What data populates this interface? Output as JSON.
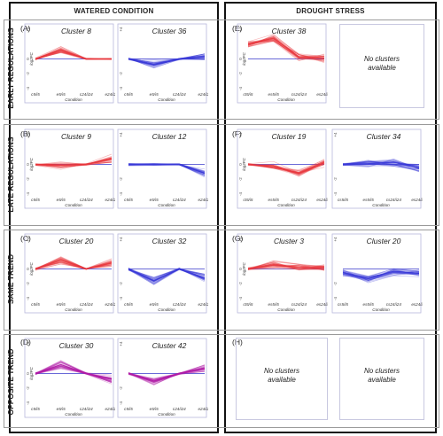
{
  "headers": {
    "watered": "WATERED CONDITION",
    "drought": "DROUGHT STRESS"
  },
  "rows": [
    {
      "label": "EARLY REGULATIONS"
    },
    {
      "label": "LATE REGULATIONS"
    },
    {
      "label": "SAME TREND"
    },
    {
      "label": "OPPOSITE TREND"
    }
  ],
  "panel_labels": [
    "(A)",
    "(B)",
    "(C)",
    "(D)",
    "(E)",
    "(F)",
    "(G)",
    "(H)"
  ],
  "no_clusters_text": {
    "line1": "No clusters",
    "line2": "available"
  },
  "colors": {
    "red": "#e8363d",
    "blue": "#3a3ad8",
    "purple": "#b01aa5",
    "baseline": "#6a6ad8"
  },
  "chart_data": [
    {
      "id": "A",
      "type": "line",
      "title": "Cluster 8",
      "color": "red",
      "ylabel": "log2FC",
      "xlabel": "Condition",
      "categories": [
        "c5/i5",
        "e5/i5",
        "c24/i24",
        "e24/i24"
      ],
      "ylim": [
        -4,
        4
      ],
      "yticks": [
        4,
        0,
        -2,
        -4
      ],
      "tick_labels": [
        "+4",
        "0",
        "-2",
        "-4"
      ],
      "values": [
        0,
        1.2,
        0,
        0
      ]
    },
    {
      "id": "A2",
      "type": "line",
      "title": "Cluster 36",
      "color": "blue",
      "ylabel": "",
      "xlabel": "Condition",
      "categories": [
        "c5/i5",
        "e5/i5",
        "c24/i24",
        "e24/i24"
      ],
      "ylim": [
        -4,
        4
      ],
      "yticks": [
        4,
        0,
        -2,
        -4
      ],
      "tick_labels": [
        "+4",
        "",
        "-2",
        "-4"
      ],
      "values": [
        0,
        -0.7,
        0,
        0.3
      ]
    },
    {
      "id": "B",
      "type": "line",
      "title": "Cluster 9",
      "color": "red",
      "ylabel": "log2FC",
      "xlabel": "Condition",
      "categories": [
        "c5/i5",
        "e5/i5",
        "c24/i24",
        "e24/i24"
      ],
      "ylim": [
        -4,
        4
      ],
      "yticks": [
        4,
        0,
        -2,
        -4
      ],
      "tick_labels": [
        "+4",
        "0",
        "-2",
        "-4"
      ],
      "values": [
        0,
        -0.1,
        0,
        0.8
      ]
    },
    {
      "id": "B2",
      "type": "line",
      "title": "Cluster 12",
      "color": "blue",
      "ylabel": "",
      "xlabel": "Condition",
      "categories": [
        "c5/i5",
        "e5/i5",
        "c24/i24",
        "e24/i24"
      ],
      "ylim": [
        -4,
        4
      ],
      "yticks": [
        4,
        0,
        -2,
        -4
      ],
      "tick_labels": [
        "+4",
        "",
        "-2",
        "-4"
      ],
      "values": [
        0,
        0,
        0,
        -1.2
      ]
    },
    {
      "id": "C",
      "type": "line",
      "title": "Cluster 20",
      "color": "red",
      "ylabel": "log2FC",
      "xlabel": "Condition",
      "categories": [
        "c5/i5",
        "e5/i5",
        "c24/i24",
        "e24/i24"
      ],
      "ylim": [
        -4,
        4
      ],
      "yticks": [
        4,
        0,
        -2,
        -4
      ],
      "tick_labels": [
        "+4",
        "0",
        "-2",
        "-4"
      ],
      "values": [
        0,
        1.2,
        0,
        0.8
      ]
    },
    {
      "id": "C2",
      "type": "line",
      "title": "Cluster 32",
      "color": "blue",
      "ylabel": "",
      "xlabel": "Condition",
      "categories": [
        "c5/i5",
        "e5/i5",
        "c24/i24",
        "e24/i24"
      ],
      "ylim": [
        -4,
        4
      ],
      "yticks": [
        4,
        0,
        -2,
        -4
      ],
      "tick_labels": [
        "+4",
        "",
        "-2",
        "-4"
      ],
      "values": [
        0,
        -1.6,
        0,
        -1.2
      ]
    },
    {
      "id": "D",
      "type": "line",
      "title": "Cluster 30",
      "color": "purple",
      "ylabel": "log2FC",
      "xlabel": "Condition",
      "categories": [
        "c5/i5",
        "e5/i5",
        "c24/i24",
        "e24/i24"
      ],
      "ylim": [
        -4,
        4
      ],
      "yticks": [
        4,
        0,
        -2,
        -4
      ],
      "tick_labels": [
        "+4",
        "0",
        "-2",
        "-4"
      ],
      "values": [
        0,
        1.2,
        0,
        -0.8
      ]
    },
    {
      "id": "D2",
      "type": "line",
      "title": "Cluster 42",
      "color": "purple",
      "ylabel": "",
      "xlabel": "Condition",
      "categories": [
        "c5/i5",
        "e5/i5",
        "c24/i24",
        "e24/i24"
      ],
      "ylim": [
        -4,
        4
      ],
      "yticks": [
        4,
        0,
        -2,
        -4
      ],
      "tick_labels": [
        "+4",
        "",
        "-2",
        "-4"
      ],
      "values": [
        0,
        -1.0,
        0,
        0.7
      ]
    },
    {
      "id": "E",
      "type": "line",
      "title": "Cluster 38",
      "color": "red",
      "ylabel": "log2FC",
      "xlabel": "Condition",
      "categories": [
        "ct5/i5",
        "es5/i5",
        "cs24/i24",
        "es24/i24"
      ],
      "ylim": [
        -4,
        4
      ],
      "yticks": [
        4,
        0,
        -2,
        -4
      ],
      "tick_labels": [
        "+4",
        "0",
        "-2",
        "-4"
      ],
      "values": [
        2.0,
        2.8,
        0.3,
        0.1
      ]
    },
    {
      "id": "F",
      "type": "line",
      "title": "Cluster 19",
      "color": "red",
      "ylabel": "log2FC",
      "xlabel": "Condition",
      "categories": [
        "ct5/i5",
        "es5/i5",
        "cs24/i24",
        "es24/i24"
      ],
      "ylim": [
        -4,
        4
      ],
      "yticks": [
        4,
        0,
        -2,
        -4
      ],
      "tick_labels": [
        "+4",
        "0",
        "-2",
        "-4"
      ],
      "values": [
        0,
        -0.2,
        -1.2,
        0.2
      ]
    },
    {
      "id": "F2",
      "type": "line",
      "title": "Cluster 34",
      "color": "blue",
      "ylabel": "",
      "xlabel": "Condition",
      "categories": [
        "cs5/i5",
        "es5/i5",
        "cs24/i24",
        "es24/i24"
      ],
      "ylim": [
        -4,
        4
      ],
      "yticks": [
        4,
        0,
        -2,
        -4
      ],
      "tick_labels": [
        "+4",
        "",
        "-2",
        "-4"
      ],
      "values": [
        0,
        0.1,
        0.3,
        -0.5
      ]
    },
    {
      "id": "G",
      "type": "line",
      "title": "Cluster 3",
      "color": "red",
      "ylabel": "log2FC",
      "xlabel": "Condition",
      "categories": [
        "ct5/i5",
        "es5/i5",
        "cs24/i24",
        "es24/i24"
      ],
      "ylim": [
        -4,
        4
      ],
      "yticks": [
        4,
        0,
        -2,
        -4
      ],
      "tick_labels": [
        "+4",
        "0",
        "-2",
        "-4"
      ],
      "values": [
        0,
        0.6,
        0.2,
        0.2
      ]
    },
    {
      "id": "G2",
      "type": "line",
      "title": "Cluster 20",
      "color": "blue",
      "ylabel": "",
      "xlabel": "Condition",
      "categories": [
        "cs5/i5",
        "es5/i5",
        "cs24/i24",
        "es24/i24"
      ],
      "ylim": [
        -4,
        4
      ],
      "yticks": [
        4,
        0,
        -2,
        -4
      ],
      "tick_labels": [
        "+4",
        "",
        "-2",
        "-4"
      ],
      "values": [
        -0.5,
        -1.3,
        -0.3,
        -0.6
      ]
    }
  ]
}
